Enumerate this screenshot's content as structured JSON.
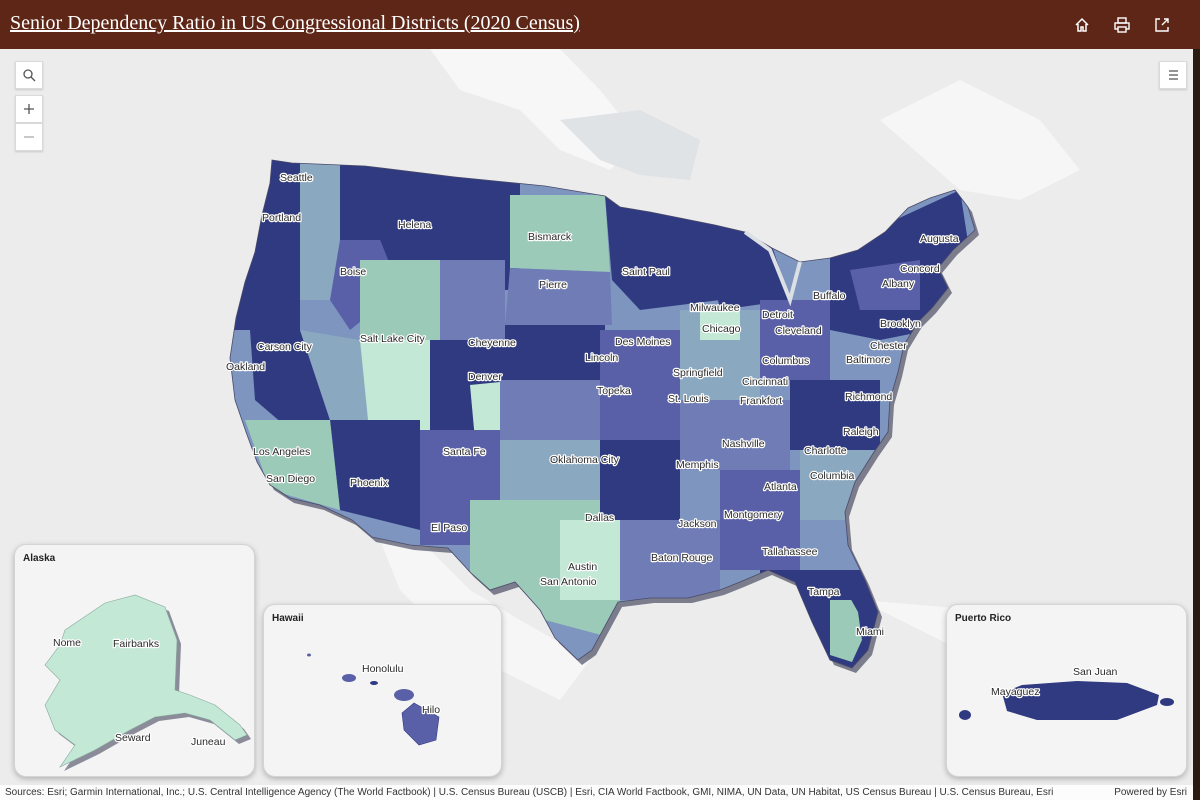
{
  "header": {
    "title": "Senior Dependency Ratio in US Congressional Districts (2020 Census)",
    "buttons": [
      "home-icon",
      "print-icon",
      "share-icon"
    ]
  },
  "map_controls": {
    "icons": [
      "search-icon",
      "zoom-in-icon",
      "zoom-out-icon",
      "legend-list-icon"
    ]
  },
  "colors": {
    "header_bg": "#5e2616",
    "ramp": [
      "#c3e8d6",
      "#9ccab9",
      "#8aa8c0",
      "#6f7cb6",
      "#5a60a8",
      "#2f3a80"
    ]
  },
  "cities": [
    "Seattle",
    "Portland",
    "Helena",
    "Bismarck",
    "Augusta",
    "Concord",
    "Boise",
    "Saint Paul",
    "Pierre",
    "Albany",
    "Buffalo",
    "Milwaukee",
    "Detroit",
    "Brooklyn",
    "Chicago",
    "Cleveland",
    "Des Moines",
    "Carson City",
    "Salt Lake City",
    "Cheyenne",
    "Lincoln",
    "Oakland",
    "Columbus",
    "Baltimore",
    "Chester",
    "Springfield",
    "Cincinnati",
    "Denver",
    "Topeka",
    "St. Louis",
    "Frankfort",
    "Richmond",
    "Raleigh",
    "Nashville",
    "Los Angeles",
    "Santa Fe",
    "Oklahoma City",
    "Memphis",
    "Charlotte",
    "Columbia",
    "San Diego",
    "Phoenix",
    "Atlanta",
    "Montgomery",
    "El Paso",
    "Dallas",
    "Jackson",
    "Baton Rouge",
    "Tallahassee",
    "Austin",
    "San Antonio",
    "Tampa",
    "Miami"
  ],
  "insets": {
    "alaska": {
      "title": "Alaska",
      "cities": [
        "Nome",
        "Fairbanks",
        "Seward",
        "Juneau"
      ]
    },
    "hawaii": {
      "title": "Hawaii",
      "cities": [
        "Honolulu",
        "Hilo"
      ]
    },
    "puerto_rico": {
      "title": "Puerto Rico",
      "cities": [
        "San Juan",
        "Mayaguez"
      ]
    }
  },
  "attribution": {
    "sources": "Sources: Esri; Garmin International, Inc.; U.S. Central Intelligence Agency (The World Factbook) | U.S. Census Bureau (USCB) | Esri, CIA World Factbook, GMI, NIMA, UN Data, UN Habitat, US Census Bureau | U.S. Census Bureau, Esri",
    "powered_by": "Powered by Esri"
  }
}
